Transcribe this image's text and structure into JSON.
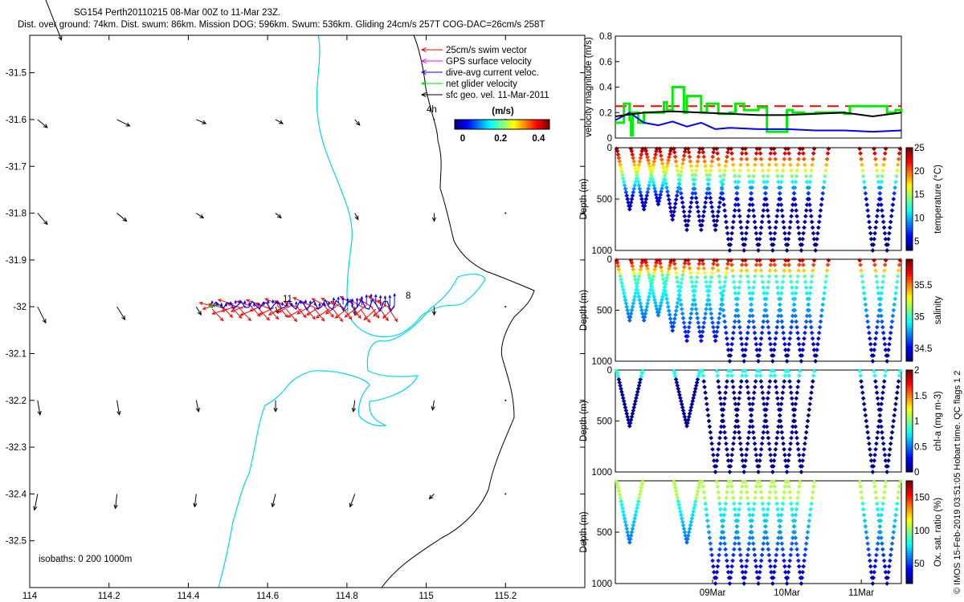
{
  "header": {
    "title": "SG154 Perth20110215 08-Mar 00Z to 11-Mar 23Z.",
    "subtitle": "Dist. over ground: 74km. Dist. swum: 86km. Mission DOG: 596km. Swum: 536km. Gliding 24cm/s 257T COG-DAC=26cm/s 258T"
  },
  "side_note": "© IMOS 15-Feb-2019 03:51:05 Hobart time. QC flags 1  2",
  "chart_data": [
    {
      "type": "map",
      "name": "track-map",
      "xlim": [
        114,
        115.4
      ],
      "ylim": [
        -32.6,
        -31.42
      ],
      "xticks": [
        "114",
        "114.2",
        "114.4",
        "114.6",
        "114.8",
        "115",
        "115.2"
      ],
      "yticks": [
        "-31.5",
        "-31.6",
        "-31.7",
        "-31.8",
        "-31.9",
        "-32",
        "-32.1",
        "-32.2",
        "-32.3",
        "-32.4",
        "-32.5"
      ],
      "legend": [
        {
          "label": "25cm/s swim vector",
          "color": "#ff0000"
        },
        {
          "label": "GPS surface velocity",
          "color": "#ff00ff"
        },
        {
          "label": "dive-avg current veloc.",
          "color": "#0000ff"
        },
        {
          "label": "net glider velocity",
          "color": "#00dd00"
        },
        {
          "label": "sfc geo. vel. 11-Mar-2011",
          "color": "#000000"
        }
      ],
      "colorbar": {
        "label": "(m/s)",
        "ticks": [
          "0",
          "0.2",
          "0.4"
        ],
        "range": [
          0,
          0.5
        ]
      },
      "isobath_label": "isobaths: 0   200  1000m",
      "annotations": [
        "4h",
        "11",
        "8"
      ],
      "track": {
        "lon_start": 114.92,
        "lon_end": 114.46,
        "lat": -32.0
      }
    },
    {
      "type": "line",
      "name": "velocity-panel",
      "ylabel": "velocity magnitude (m/s)",
      "ylim": [
        0,
        0.8
      ],
      "yticks": [
        "0",
        "0.2",
        "0.4",
        "0.6",
        "0.8"
      ],
      "series": [
        {
          "name": "swim",
          "color": "#ff0000",
          "style": "dashed",
          "x": [
            0,
            1
          ],
          "y": [
            0.25,
            0.25
          ]
        },
        {
          "name": "net glider velocity",
          "color": "#00ee00",
          "x": [
            0,
            0.02,
            0.03,
            0.04,
            0.05,
            0.055,
            0.06,
            0.08,
            0.1,
            0.15,
            0.17,
            0.18,
            0.2,
            0.24,
            0.25,
            0.3,
            0.32,
            0.34,
            0.36,
            0.4,
            0.42,
            0.45,
            0.5,
            0.53,
            0.55,
            0.6,
            0.62,
            0.66,
            0.7,
            0.8,
            0.82,
            0.9,
            0.92,
            0.95,
            0.98,
            1
          ],
          "y": [
            0.12,
            0.12,
            0.27,
            0.27,
            0.14,
            0.02,
            0.2,
            0.12,
            0.2,
            0.2,
            0.28,
            0.22,
            0.4,
            0.2,
            0.33,
            0.2,
            0.27,
            0.27,
            0.19,
            0.2,
            0.27,
            0.22,
            0.24,
            0.05,
            0.05,
            0.22,
            0.2,
            0.19,
            0.2,
            0.19,
            0.25,
            0.25,
            0.25,
            0.2,
            0.22,
            0.2
          ]
        },
        {
          "name": "dive-avg current",
          "color": "#0000ff",
          "x": [
            0,
            0.05,
            0.1,
            0.15,
            0.2,
            0.25,
            0.3,
            0.35,
            0.4,
            0.5,
            0.6,
            0.7,
            0.8,
            0.9,
            1
          ],
          "y": [
            0.14,
            0.2,
            0.12,
            0.1,
            0.13,
            0.09,
            0.12,
            0.07,
            0.08,
            0.07,
            0.07,
            0.06,
            0.06,
            0.05,
            0.06
          ]
        },
        {
          "name": "surface geostrophic",
          "color": "#000000",
          "x": [
            0,
            0.1,
            0.2,
            0.3,
            0.4,
            0.5,
            0.6,
            0.7,
            0.8,
            0.9,
            1
          ],
          "y": [
            0.17,
            0.2,
            0.21,
            0.2,
            0.19,
            0.18,
            0.18,
            0.19,
            0.2,
            0.17,
            0.2
          ]
        }
      ]
    },
    {
      "type": "scatter",
      "name": "temperature-panel",
      "ylabel": "Depth (m)",
      "clabel": "temperature (°C)",
      "yticks": [
        "0",
        "500",
        "1000"
      ],
      "cticks": [
        "5",
        "10",
        "15",
        "20",
        "25"
      ],
      "crange": [
        3,
        25
      ],
      "profiles": {
        "x": [
          0.05,
          0.1,
          0.15,
          0.2,
          0.25,
          0.3,
          0.35,
          0.4,
          0.45,
          0.5,
          0.55,
          0.6,
          0.65,
          0.7,
          0.9,
          0.95
        ],
        "depth": [
          600,
          600,
          550,
          700,
          800,
          800,
          800,
          1000,
          1000,
          1000,
          1000,
          1000,
          1000,
          1000,
          1000,
          1000
        ]
      }
    },
    {
      "type": "scatter",
      "name": "salinity-panel",
      "ylabel": "Depth (m)",
      "clabel": "salinity",
      "yticks": [
        "0",
        "500",
        "1000"
      ],
      "cticks": [
        "34.5",
        "35",
        "35.5"
      ],
      "crange": [
        34.3,
        35.9
      ],
      "profiles": {
        "x": [
          0.05,
          0.1,
          0.15,
          0.2,
          0.25,
          0.3,
          0.35,
          0.4,
          0.45,
          0.5,
          0.55,
          0.6,
          0.65,
          0.7,
          0.9,
          0.95
        ],
        "depth": [
          600,
          600,
          550,
          700,
          800,
          800,
          800,
          1000,
          1000,
          1000,
          1000,
          1000,
          1000,
          1000,
          1000,
          1000
        ]
      }
    },
    {
      "type": "scatter",
      "name": "chla-panel",
      "ylabel": "Depth (m)",
      "clabel": "chl-a (mg m-3)",
      "yticks": [
        "0",
        "500",
        "1000"
      ],
      "cticks": [
        "0",
        "0.5",
        "1",
        "1.5",
        "2"
      ],
      "crange": [
        0,
        2
      ],
      "profiles": {
        "x": [
          0.05,
          0.25,
          0.35,
          0.4,
          0.45,
          0.5,
          0.55,
          0.6,
          0.65,
          0.9,
          0.95
        ],
        "depth": [
          550,
          550,
          1000,
          1000,
          1000,
          1000,
          1000,
          1000,
          1000,
          1000,
          1000
        ]
      }
    },
    {
      "type": "scatter",
      "name": "oxygen-panel",
      "ylabel": "Depth (m)",
      "clabel": "Ox. sat. ratio (%)",
      "xticks": [
        "09Mar",
        "10Mar",
        "11Mar"
      ],
      "yticks": [
        "500",
        "1000"
      ],
      "cticks": [
        "50",
        "100",
        "150"
      ],
      "crange": [
        20,
        175
      ],
      "profiles": {
        "x": [
          0.05,
          0.25,
          0.35,
          0.4,
          0.45,
          0.5,
          0.55,
          0.6,
          0.65,
          0.9,
          0.95
        ],
        "depth": [
          600,
          600,
          1000,
          1000,
          1000,
          1000,
          1000,
          1000,
          1000,
          1000,
          1000
        ]
      }
    }
  ]
}
